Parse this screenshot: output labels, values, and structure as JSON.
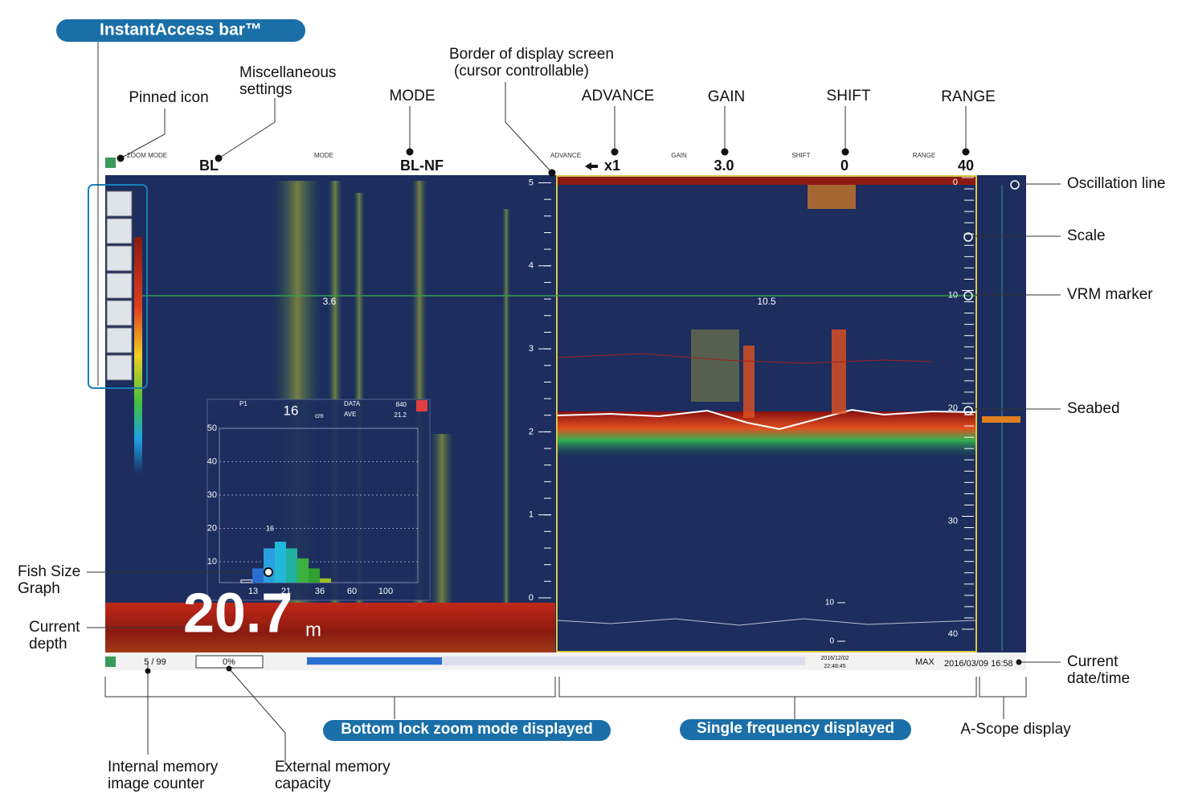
{
  "callouts": {
    "instant_access": "InstantAccess bar™",
    "bottom_lock": "Bottom lock zoom mode displayed",
    "single_freq": "Single frequency displayed"
  },
  "annotations": [
    {
      "lines": [
        "Pinned icon"
      ]
    },
    {
      "lines": [
        "Miscellaneous",
        "settings"
      ]
    },
    {
      "lines": [
        "MODE"
      ]
    },
    {
      "lines": [
        "Border of display screen",
        "(cursor controllable)"
      ]
    },
    {
      "lines": [
        "ADVANCE"
      ]
    },
    {
      "lines": [
        "GAIN"
      ]
    },
    {
      "lines": [
        "SHIFT"
      ]
    },
    {
      "lines": [
        "RANGE"
      ]
    },
    {
      "lines": [
        "Oscillation line"
      ]
    },
    {
      "lines": [
        "Scale"
      ]
    },
    {
      "lines": [
        "VRM marker"
      ]
    },
    {
      "lines": [
        "Seabed"
      ]
    },
    {
      "lines": [
        "Current",
        "date/time"
      ]
    },
    {
      "lines": [
        "Fish Size",
        "Graph"
      ]
    },
    {
      "lines": [
        "Current",
        "depth"
      ]
    },
    {
      "lines": [
        "Internal memory",
        "image counter"
      ]
    },
    {
      "lines": [
        "External memory",
        "capacity"
      ]
    },
    {
      "lines": [
        "A-Scope display"
      ]
    }
  ],
  "header": [
    {
      "label": "ZOOM MODE",
      "value": "BL"
    },
    {
      "label": "MODE",
      "value": "BL-NF"
    },
    {
      "label": "ADVANCE",
      "value": "x1"
    },
    {
      "label": "GAIN",
      "value": "3.0"
    },
    {
      "label": "SHIFT",
      "value": "0"
    },
    {
      "label": "RANGE",
      "value": "40"
    }
  ],
  "left_scale": [
    5,
    4,
    3,
    2,
    1,
    0
  ],
  "right_scale": [
    0,
    10,
    20,
    30,
    40
  ],
  "ascope_scale": [
    10,
    0
  ],
  "vrm": {
    "left": "3.6",
    "right": "10.5"
  },
  "fish_size_graph": {
    "point": "P1",
    "size": "16",
    "unit": "cm",
    "data_label": "DATA",
    "ave_label": "AVE",
    "data_value": "840",
    "ave_value": "21.2",
    "yticks": [
      50,
      40,
      30,
      20,
      10
    ],
    "xticks": [
      "13",
      "21",
      "36",
      "60",
      "100"
    ],
    "bars": [
      4.5,
      8,
      14,
      16,
      14,
      11,
      8,
      5
    ],
    "peak_label": "16"
  },
  "depth": {
    "value": "20.7",
    "unit": "m"
  },
  "status": {
    "counter": "5 / 99",
    "capacity": "0%",
    "record_date": "2016/12/02",
    "record_time": "22:48:45",
    "max": "MAX",
    "datetime": "2016/03/09 16:58"
  }
}
